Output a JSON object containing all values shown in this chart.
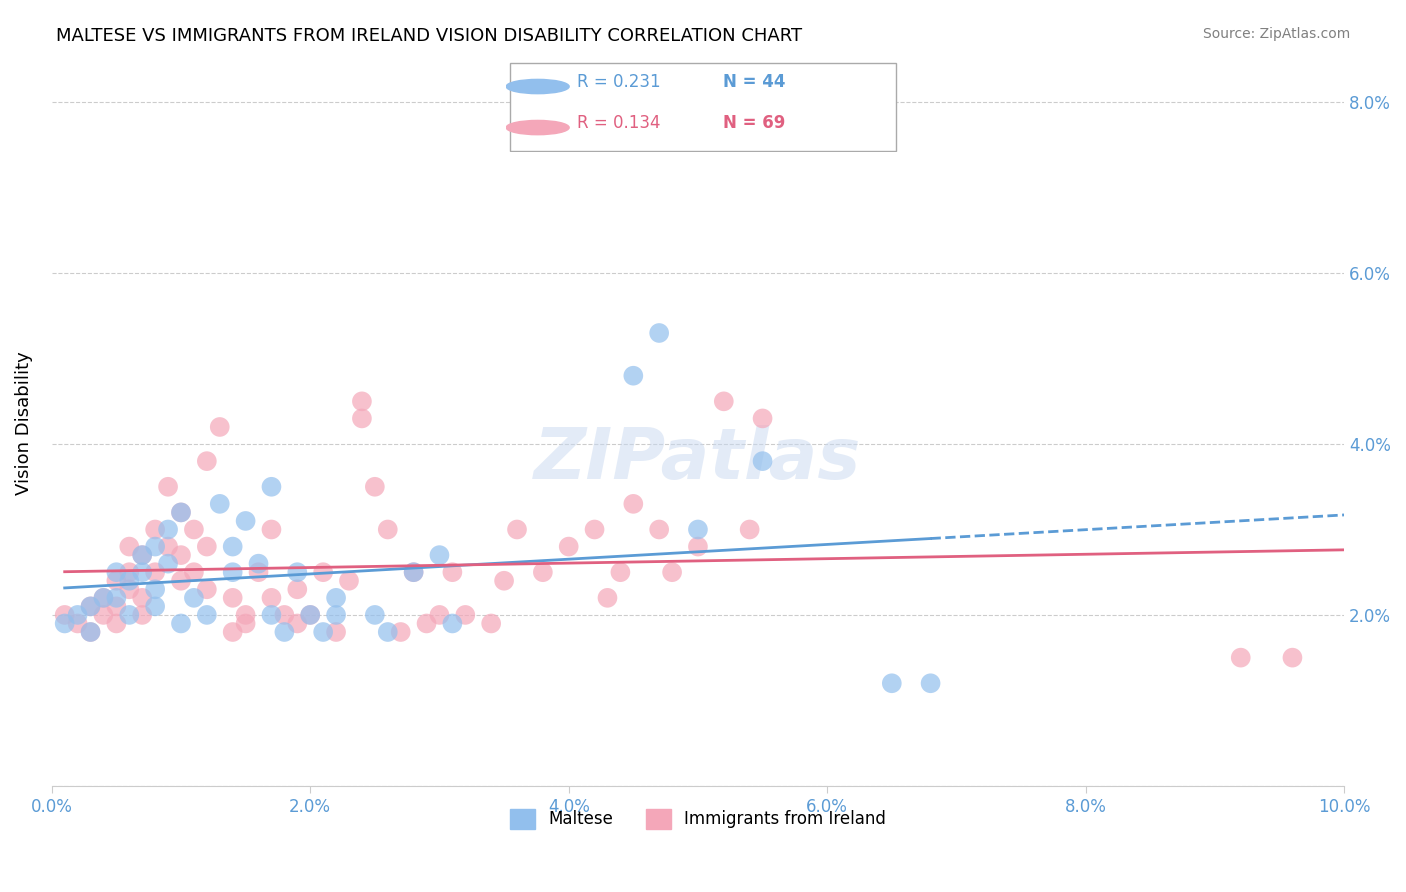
{
  "title": "MALTESE VS IMMIGRANTS FROM IRELAND VISION DISABILITY CORRELATION CHART",
  "source": "Source: ZipAtlas.com",
  "ylabel": "Vision Disability",
  "xlabel": "",
  "xlim": [
    0.0,
    0.1
  ],
  "ylim": [
    0.0,
    0.085
  ],
  "yticks": [
    0.0,
    0.02,
    0.04,
    0.06,
    0.08
  ],
  "ytick_labels": [
    "",
    "2.0%",
    "4.0%",
    "6.0%",
    "8.0%"
  ],
  "xticks": [
    0.0,
    0.02,
    0.04,
    0.06,
    0.08,
    0.1
  ],
  "xtick_labels": [
    "0.0%",
    "2.0%",
    "4.0%",
    "6.0%",
    "8.0%",
    "10.0%"
  ],
  "watermark": "ZIPatlas",
  "legend_r1": "R = 0.231",
  "legend_n1": "N = 44",
  "legend_r2": "R = 0.134",
  "legend_n2": "N = 69",
  "color_blue": "#92BFED",
  "color_pink": "#F4A7B9",
  "color_blue_line": "#5B9BD5",
  "color_pink_line": "#E06080",
  "color_axis_ticks": "#5B9BD5",
  "maltese_x": [
    0.001,
    0.002,
    0.003,
    0.003,
    0.004,
    0.005,
    0.005,
    0.006,
    0.006,
    0.007,
    0.007,
    0.008,
    0.008,
    0.008,
    0.009,
    0.009,
    0.01,
    0.01,
    0.011,
    0.012,
    0.013,
    0.014,
    0.014,
    0.015,
    0.016,
    0.017,
    0.017,
    0.018,
    0.019,
    0.02,
    0.021,
    0.022,
    0.022,
    0.025,
    0.026,
    0.028,
    0.03,
    0.031,
    0.045,
    0.047,
    0.05,
    0.055,
    0.065,
    0.068
  ],
  "maltese_y": [
    0.019,
    0.02,
    0.021,
    0.018,
    0.022,
    0.025,
    0.022,
    0.024,
    0.02,
    0.027,
    0.025,
    0.028,
    0.023,
    0.021,
    0.026,
    0.03,
    0.019,
    0.032,
    0.022,
    0.02,
    0.033,
    0.025,
    0.028,
    0.031,
    0.026,
    0.035,
    0.02,
    0.018,
    0.025,
    0.02,
    0.018,
    0.022,
    0.02,
    0.02,
    0.018,
    0.025,
    0.027,
    0.019,
    0.048,
    0.053,
    0.03,
    0.038,
    0.012,
    0.012
  ],
  "ireland_x": [
    0.001,
    0.002,
    0.003,
    0.003,
    0.004,
    0.004,
    0.005,
    0.005,
    0.005,
    0.006,
    0.006,
    0.006,
    0.007,
    0.007,
    0.007,
    0.008,
    0.008,
    0.009,
    0.009,
    0.01,
    0.01,
    0.01,
    0.011,
    0.011,
    0.012,
    0.012,
    0.012,
    0.013,
    0.014,
    0.014,
    0.015,
    0.015,
    0.016,
    0.017,
    0.017,
    0.018,
    0.019,
    0.019,
    0.02,
    0.021,
    0.022,
    0.023,
    0.024,
    0.024,
    0.025,
    0.026,
    0.027,
    0.028,
    0.029,
    0.03,
    0.031,
    0.032,
    0.034,
    0.035,
    0.036,
    0.038,
    0.04,
    0.042,
    0.043,
    0.044,
    0.045,
    0.047,
    0.048,
    0.05,
    0.052,
    0.054,
    0.055,
    0.092,
    0.096
  ],
  "ireland_y": [
    0.02,
    0.019,
    0.021,
    0.018,
    0.022,
    0.02,
    0.024,
    0.021,
    0.019,
    0.028,
    0.025,
    0.023,
    0.027,
    0.022,
    0.02,
    0.03,
    0.025,
    0.035,
    0.028,
    0.032,
    0.027,
    0.024,
    0.03,
    0.025,
    0.038,
    0.028,
    0.023,
    0.042,
    0.018,
    0.022,
    0.02,
    0.019,
    0.025,
    0.03,
    0.022,
    0.02,
    0.019,
    0.023,
    0.02,
    0.025,
    0.018,
    0.024,
    0.045,
    0.043,
    0.035,
    0.03,
    0.018,
    0.025,
    0.019,
    0.02,
    0.025,
    0.02,
    0.019,
    0.024,
    0.03,
    0.025,
    0.028,
    0.03,
    0.022,
    0.025,
    0.033,
    0.03,
    0.025,
    0.028,
    0.045,
    0.03,
    0.043,
    0.015,
    0.015
  ]
}
